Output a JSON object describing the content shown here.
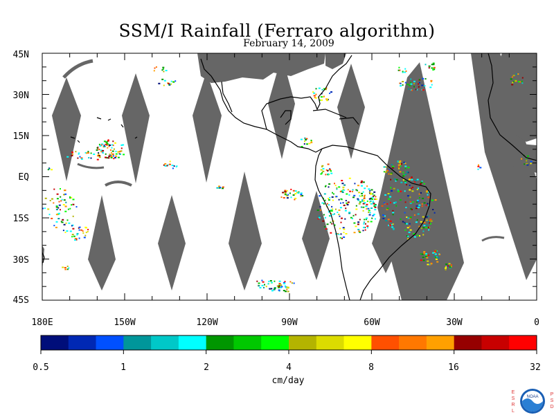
{
  "title": "SSM/I Rainfall (Ferraro algorithm)",
  "subtitle": "February 14, 2009",
  "map": {
    "lat_labels": [
      "45N",
      "30N",
      "15N",
      "EQ",
      "15S",
      "30S",
      "45S"
    ],
    "lon_labels": [
      "180E",
      "150W",
      "120W",
      "90W",
      "60W",
      "30W",
      "0"
    ],
    "swath_gap_color": "#666666",
    "coastline_color": "#000000"
  },
  "colorbar": {
    "unit": "cm/day",
    "tick_labels": [
      "0.5",
      "1",
      "2",
      "4",
      "8",
      "16",
      "32"
    ],
    "colors": [
      "#000e7a",
      "#0028b4",
      "#0050ff",
      "#00969a",
      "#00c8c8",
      "#00ffff",
      "#009600",
      "#00c800",
      "#00ff00",
      "#b4b400",
      "#dcdc00",
      "#ffff00",
      "#ff5000",
      "#ff7800",
      "#ffa000",
      "#960000",
      "#c80000",
      "#ff0000"
    ]
  },
  "logo": {
    "left_letters": [
      "E",
      "S",
      "R",
      "L"
    ],
    "right_letters": [
      "P",
      "S",
      "D"
    ],
    "badge_text": "NOAA"
  }
}
